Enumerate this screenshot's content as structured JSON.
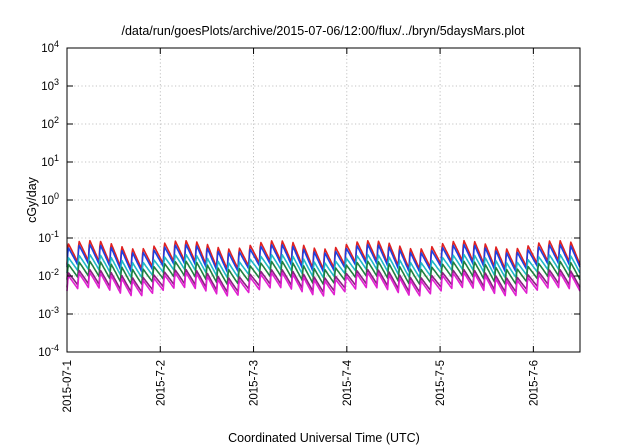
{
  "chart_data": {
    "type": "line",
    "title": "/data/run/goesPlots/archive/2015-07-06/12:00/flux/../bryn/5daysMars.plot",
    "xlabel": "Coordinated Universal Time (UTC)",
    "ylabel": "cGy/day",
    "yscale": "log",
    "ylim": [
      0.0001,
      10000
    ],
    "yticks": [
      {
        "value": 0.0001,
        "base": "10",
        "exp": "-4"
      },
      {
        "value": 0.001,
        "base": "10",
        "exp": "-3"
      },
      {
        "value": 0.01,
        "base": "10",
        "exp": "-2"
      },
      {
        "value": 0.1,
        "base": "10",
        "exp": "-1"
      },
      {
        "value": 1,
        "base": "10",
        "exp": "0"
      },
      {
        "value": 10,
        "base": "10",
        "exp": "1"
      },
      {
        "value": 100,
        "base": "10",
        "exp": "2"
      },
      {
        "value": 1000,
        "base": "10",
        "exp": "3"
      },
      {
        "value": 10000,
        "base": "10",
        "exp": "4"
      }
    ],
    "xlim": [
      "2015-07-01",
      "2015-07-06T12:00"
    ],
    "xticks": [
      {
        "value": "2015-07-01",
        "label": "2015-07-1"
      },
      {
        "value": "2015-07-02",
        "label": "2015-7-2"
      },
      {
        "value": "2015-07-03",
        "label": "2015-7-3"
      },
      {
        "value": "2015-07-04",
        "label": "2015-7-4"
      },
      {
        "value": "2015-07-05",
        "label": "2015-7-5"
      },
      {
        "value": "2015-07-06",
        "label": "2015-7-6"
      }
    ],
    "grid": true,
    "legend": "none",
    "series": [
      {
        "color": "#e02020",
        "values_approx": [
          0.07,
          0.02
        ]
      },
      {
        "color": "#1e40e0",
        "values_approx": [
          0.055,
          0.017
        ]
      },
      {
        "color": "#20b8c8",
        "values_approx": [
          0.03,
          0.012
        ]
      },
      {
        "color": "#208040",
        "values_approx": [
          0.02,
          0.008
        ]
      },
      {
        "color": "#8a2080",
        "values_approx": [
          0.012,
          0.005
        ]
      },
      {
        "color": "#e020d0",
        "values_approx": [
          0.01,
          0.004
        ]
      }
    ]
  }
}
